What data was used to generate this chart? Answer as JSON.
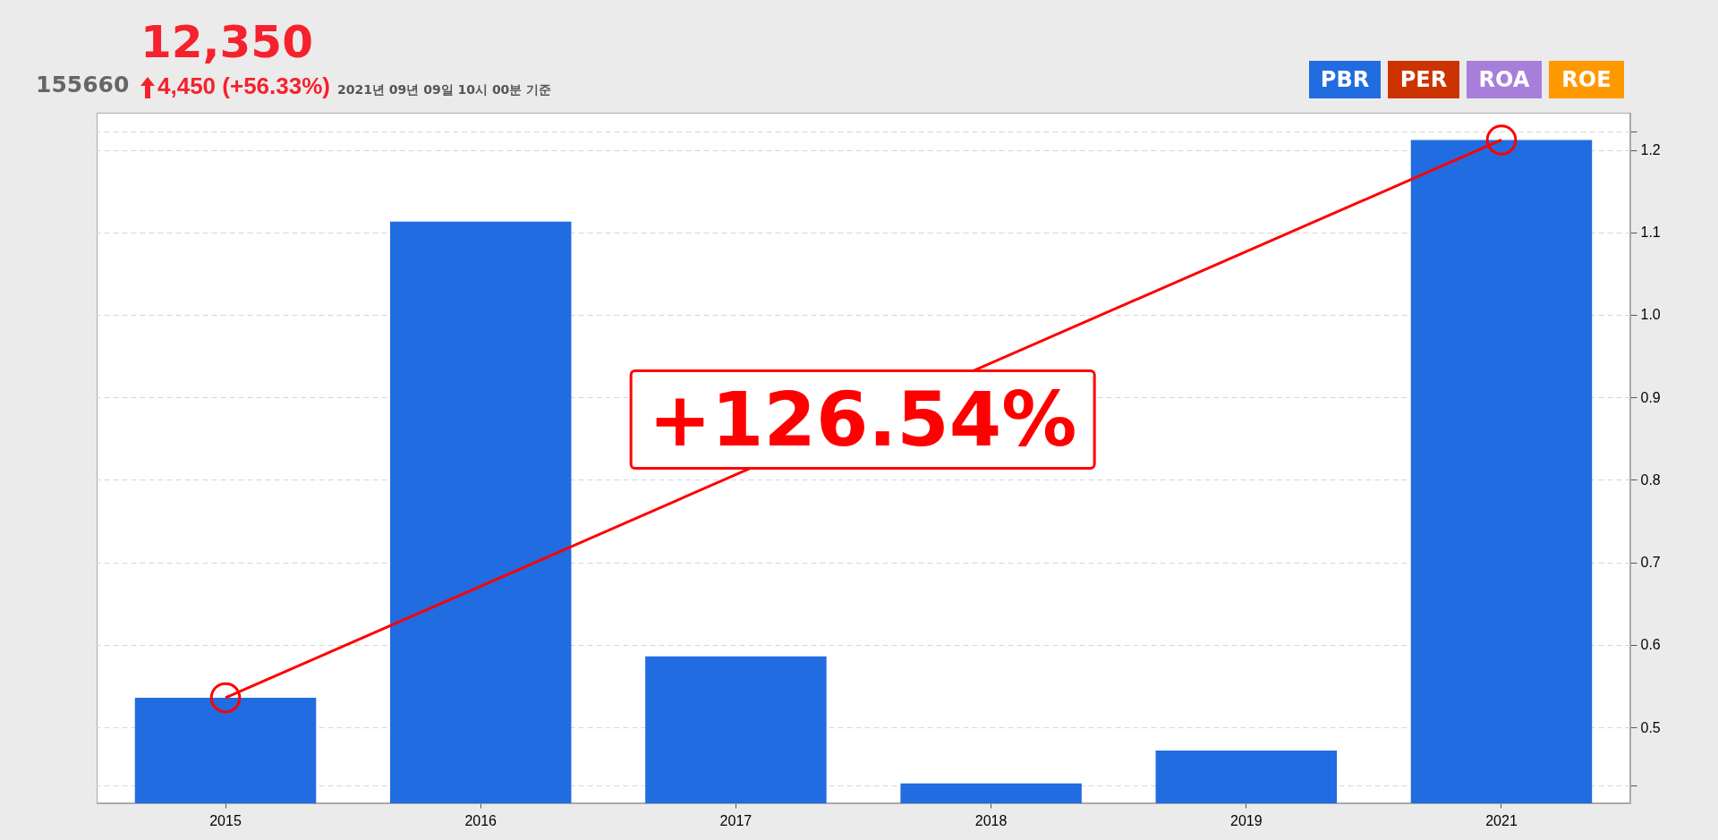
{
  "chart_data": {
    "type": "bar",
    "title": "12,350",
    "categories": [
      "2015",
      "2016",
      "2017",
      "2018",
      "2019",
      "2021"
    ],
    "series": [
      {
        "name": "PBR",
        "color": "#216ce0",
        "values": [
          0.536,
          1.113,
          0.586,
          0.432,
          0.472,
          1.212
        ]
      },
      {
        "type": "line",
        "color": "#ff0000",
        "values": [
          0.536,
          null,
          null,
          null,
          null,
          1.212
        ],
        "marker": "circle"
      }
    ],
    "ylim": [
      0.408,
      1.245
    ],
    "yticks": [
      {
        "value": 0.43,
        "label": null
      },
      0.5,
      0.6,
      0.7,
      0.8,
      0.9,
      {
        "value": 1,
        "label": "1.0"
      },
      1.1,
      1.2,
      {
        "value": 1.222,
        "label": null
      }
    ],
    "grid": "y",
    "legend": "top right",
    "annotations": [
      "155660",
      "4,450 (+56.33%)",
      "2021년 09년 09일 10시 00분 기준",
      "PER",
      "ROA",
      "ROE",
      "+126.54%"
    ]
  }
}
